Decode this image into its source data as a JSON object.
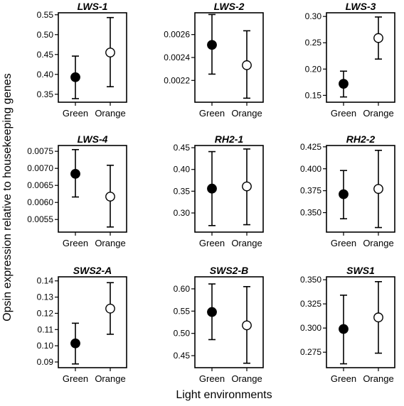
{
  "figure": {
    "ylabel": "Opsin expression relative to housekeeping genes",
    "xlabel": "Light environments"
  },
  "chart_data": [
    {
      "type": "scatter",
      "title": "LWS-1",
      "categories": [
        "Green",
        "Orange"
      ],
      "ylim": [
        0.33,
        0.555
      ],
      "yticks": [
        0.35,
        0.4,
        0.45,
        0.5,
        0.55
      ],
      "ytick_labels": [
        "0.35",
        "0.40",
        "0.45",
        "0.50",
        "0.55"
      ],
      "points": [
        {
          "category": "Green",
          "value": 0.393,
          "lower": 0.339,
          "upper": 0.446,
          "fill": "#000000"
        },
        {
          "category": "Orange",
          "value": 0.455,
          "lower": 0.369,
          "upper": 0.543,
          "fill": "#ffffff"
        }
      ]
    },
    {
      "type": "scatter",
      "title": "LWS-2",
      "categories": [
        "Green",
        "Orange"
      ],
      "ylim": [
        0.00201,
        0.00279
      ],
      "yticks": [
        0.0022,
        0.0024,
        0.0026
      ],
      "ytick_labels": [
        "0.0022",
        "0.0024",
        "0.0026"
      ],
      "points": [
        {
          "category": "Green",
          "value": 0.00251,
          "lower": 0.002255,
          "upper": 0.002775,
          "fill": "#000000"
        },
        {
          "category": "Orange",
          "value": 0.002333,
          "lower": 0.002045,
          "upper": 0.002633,
          "fill": "#ffffff"
        }
      ]
    },
    {
      "type": "scatter",
      "title": "LWS-3",
      "categories": [
        "Green",
        "Orange"
      ],
      "ylim": [
        0.137,
        0.307
      ],
      "yticks": [
        0.15,
        0.2,
        0.25,
        0.3
      ],
      "ytick_labels": [
        "0.15",
        "0.20",
        "0.25",
        "0.30"
      ],
      "points": [
        {
          "category": "Green",
          "value": 0.172,
          "lower": 0.147,
          "upper": 0.196,
          "fill": "#000000"
        },
        {
          "category": "Orange",
          "value": 0.259,
          "lower": 0.219,
          "upper": 0.299,
          "fill": "#ffffff"
        }
      ]
    },
    {
      "type": "scatter",
      "title": "LWS-4",
      "categories": [
        "Green",
        "Orange"
      ],
      "ylim": [
        0.00513,
        0.00767
      ],
      "yticks": [
        0.0055,
        0.006,
        0.0065,
        0.007,
        0.0075
      ],
      "ytick_labels": [
        "0.0055",
        "0.0060",
        "0.0065",
        "0.0070",
        "0.0075"
      ],
      "points": [
        {
          "category": "Green",
          "value": 0.00684,
          "lower": 0.00616,
          "upper": 0.00755,
          "fill": "#000000"
        },
        {
          "category": "Orange",
          "value": 0.00617,
          "lower": 0.00528,
          "upper": 0.00709,
          "fill": "#ffffff"
        }
      ]
    },
    {
      "type": "scatter",
      "title": "RH2-1",
      "categories": [
        "Green",
        "Orange"
      ],
      "ylim": [
        0.256,
        0.455
      ],
      "yticks": [
        0.3,
        0.35,
        0.4,
        0.45
      ],
      "ytick_labels": [
        "0.30",
        "0.35",
        "0.40",
        "0.45"
      ],
      "points": [
        {
          "category": "Green",
          "value": 0.356,
          "lower": 0.271,
          "upper": 0.441,
          "fill": "#000000"
        },
        {
          "category": "Orange",
          "value": 0.361,
          "lower": 0.273,
          "upper": 0.447,
          "fill": "#ffffff"
        }
      ]
    },
    {
      "type": "scatter",
      "title": "RH2-2",
      "categories": [
        "Green",
        "Orange"
      ],
      "ylim": [
        0.3278,
        0.4265
      ],
      "yticks": [
        0.35,
        0.375,
        0.4,
        0.425
      ],
      "ytick_labels": [
        "0.350",
        "0.375",
        "0.400",
        "0.425"
      ],
      "points": [
        {
          "category": "Green",
          "value": 0.371,
          "lower": 0.343,
          "upper": 0.398,
          "fill": "#000000"
        },
        {
          "category": "Orange",
          "value": 0.377,
          "lower": 0.333,
          "upper": 0.421,
          "fill": "#ffffff"
        }
      ]
    },
    {
      "type": "scatter",
      "title": "SWS2-A",
      "categories": [
        "Green",
        "Orange"
      ],
      "ylim": [
        0.0865,
        0.1425
      ],
      "yticks": [
        0.09,
        0.1,
        0.11,
        0.12,
        0.13,
        0.14
      ],
      "ytick_labels": [
        "0.09",
        "0.10",
        "0.11",
        "0.12",
        "0.13",
        "0.14"
      ],
      "points": [
        {
          "category": "Green",
          "value": 0.1015,
          "lower": 0.0888,
          "upper": 0.1139,
          "fill": "#000000"
        },
        {
          "category": "Orange",
          "value": 0.1229,
          "lower": 0.1071,
          "upper": 0.1389,
          "fill": "#ffffff"
        }
      ]
    },
    {
      "type": "scatter",
      "title": "SWS2-B",
      "categories": [
        "Green",
        "Orange"
      ],
      "ylim": [
        0.423,
        0.627
      ],
      "yticks": [
        0.45,
        0.5,
        0.55,
        0.6
      ],
      "ytick_labels": [
        "0.45",
        "0.50",
        "0.55",
        "0.60"
      ],
      "points": [
        {
          "category": "Green",
          "value": 0.548,
          "lower": 0.486,
          "upper": 0.611,
          "fill": "#000000"
        },
        {
          "category": "Orange",
          "value": 0.518,
          "lower": 0.433,
          "upper": 0.605,
          "fill": "#ffffff"
        }
      ]
    },
    {
      "type": "scatter",
      "title": "SWS1",
      "categories": [
        "Green",
        "Orange"
      ],
      "ylim": [
        0.259,
        0.353
      ],
      "yticks": [
        0.275,
        0.3,
        0.325,
        0.35
      ],
      "ytick_labels": [
        "0.275",
        "0.300",
        "0.325",
        "0.350"
      ],
      "points": [
        {
          "category": "Green",
          "value": 0.299,
          "lower": 0.263,
          "upper": 0.334,
          "fill": "#000000"
        },
        {
          "category": "Orange",
          "value": 0.311,
          "lower": 0.274,
          "upper": 0.348,
          "fill": "#ffffff"
        }
      ]
    }
  ]
}
